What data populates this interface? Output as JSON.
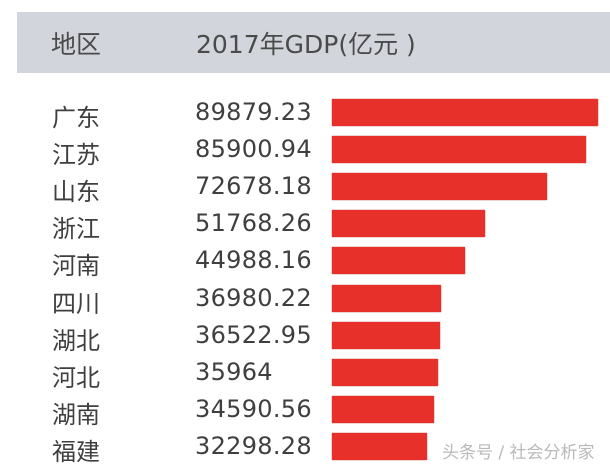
{
  "header": {
    "region_label": "地区",
    "gdp_label": "2017年GDP(亿元 )"
  },
  "watermark": "头条号 / 社会分析家",
  "colors": {
    "bar": "#e8302a",
    "header_bg": "#d3d5dc"
  },
  "rows": [
    {
      "region": "广东",
      "value": "89879.23"
    },
    {
      "region": "江苏",
      "value": "85900.94"
    },
    {
      "region": "山东",
      "value": "72678.18"
    },
    {
      "region": "浙江",
      "value": "51768.26"
    },
    {
      "region": "河南",
      "value": "44988.16"
    },
    {
      "region": "四川",
      "value": "36980.22"
    },
    {
      "region": "湖北",
      "value": "36522.95"
    },
    {
      "region": "河北",
      "value": "35964"
    },
    {
      "region": "湖南",
      "value": "34590.56"
    },
    {
      "region": "福建",
      "value": "32298.28"
    }
  ],
  "chart_data": {
    "type": "bar",
    "orientation": "horizontal",
    "title": "2017年GDP(亿元 )",
    "xlabel": "",
    "ylabel": "地区",
    "categories": [
      "广东",
      "江苏",
      "山东",
      "浙江",
      "河南",
      "四川",
      "湖北",
      "河北",
      "湖南",
      "福建"
    ],
    "values": [
      89879.23,
      85900.94,
      72678.18,
      51768.26,
      44988.16,
      36980.22,
      36522.95,
      35964,
      34590.56,
      32298.28
    ],
    "grid": false,
    "legend": null
  }
}
